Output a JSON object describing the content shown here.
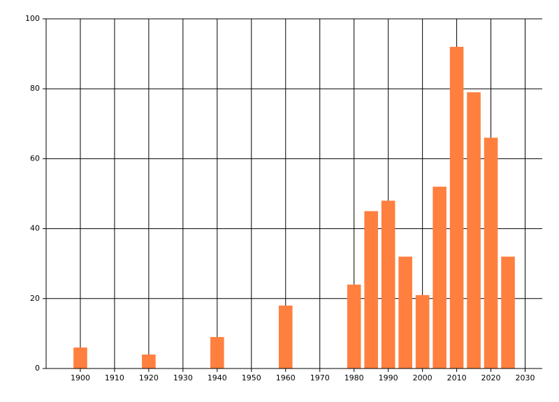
{
  "chart_data": {
    "type": "bar",
    "x": [
      1900,
      1920,
      1940,
      1960,
      1980,
      1985,
      1990,
      1995,
      2000,
      2005,
      2010,
      2015,
      2020,
      2025
    ],
    "values": [
      6,
      4,
      9,
      18,
      24,
      45,
      48,
      32,
      21,
      52,
      92,
      79,
      66,
      32
    ],
    "color": "#ff7f3f",
    "xlim": [
      1890,
      2035
    ],
    "xticks": [
      1900,
      1910,
      1920,
      1930,
      1940,
      1950,
      1960,
      1970,
      1980,
      1990,
      2000,
      2010,
      2020,
      2030
    ],
    "ylim": [
      0,
      100
    ],
    "yticks": [
      0,
      20,
      40,
      60,
      80,
      100
    ],
    "grid": true
  }
}
